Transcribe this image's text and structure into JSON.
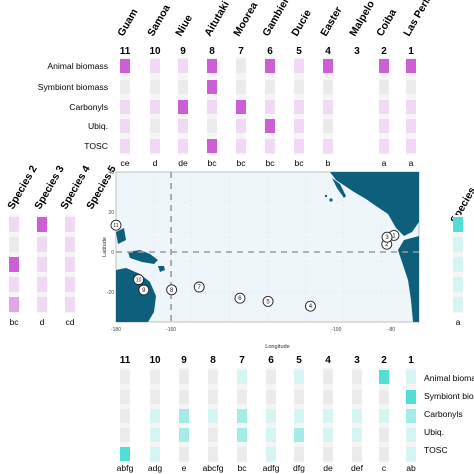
{
  "colors": {
    "magenta_strong": "#cc5fd6",
    "magenta_mid": "#e2a6e8",
    "magenta_light": "#f0d9f2",
    "cyan_strong": "#4fe0d3",
    "cyan_mid": "#a4ede7",
    "cyan_light": "#d6f5f2",
    "grey": "#ebebeb",
    "ocean": "#eef6fa",
    "land": "#0d5f7c"
  },
  "rows": [
    "Animal biomass",
    "Symbiont biomass",
    "Carbonyls",
    "Ubiq.",
    "TOSC"
  ],
  "rows_right_truncated": [
    "Animal biomass",
    "Symbiont bio",
    "Carbonyls",
    "Ubiq.",
    "TOSC"
  ],
  "chart_data": [
    {
      "type": "heatmap",
      "name_note": "top panel",
      "columns": [
        {
          "site": "Guam",
          "num": "11",
          "letters": "ce",
          "levels": [
            3,
            0,
            1,
            1,
            1
          ]
        },
        {
          "site": "Samoa",
          "num": "10",
          "letters": "d",
          "levels": [
            1,
            0,
            1,
            0,
            1
          ]
        },
        {
          "site": "Niue",
          "num": "9",
          "letters": "de",
          "levels": [
            1,
            0,
            3,
            1,
            1
          ]
        },
        {
          "site": "Aitutaki",
          "num": "8",
          "letters": "bc",
          "levels": [
            3,
            3,
            1,
            0,
            3
          ]
        },
        {
          "site": "Moorea",
          "num": "7",
          "letters": "bc",
          "levels": [
            0,
            0,
            3,
            1,
            1
          ]
        },
        {
          "site": "Gambier",
          "num": "6",
          "letters": "bc",
          "levels": [
            3,
            0,
            1,
            3,
            1
          ]
        },
        {
          "site": "Ducie",
          "num": "5",
          "letters": "bc",
          "levels": [
            1,
            0,
            1,
            1,
            1
          ]
        },
        {
          "site": "Easter",
          "num": "4",
          "letters": "b",
          "levels": [
            3,
            0,
            1,
            0,
            1
          ]
        },
        {
          "site": "Malpelo",
          "num": "3",
          "letters": "",
          "levels": []
        },
        {
          "site": "Coiba",
          "num": "2",
          "letters": "a",
          "levels": [
            3,
            0,
            1,
            1,
            1
          ]
        },
        {
          "site": "Las Perlas",
          "num": "1",
          "letters": "a",
          "levels": [
            3,
            0,
            1,
            1,
            1
          ]
        }
      ]
    },
    {
      "type": "heatmap",
      "name_note": "left panel",
      "columns": [
        {
          "species": "Species 2",
          "letters": "bc",
          "levels": [
            1,
            0,
            3,
            1,
            2
          ]
        },
        {
          "species": "Species 3",
          "letters": "",
          "levels": []
        },
        {
          "species": "Species 4",
          "letters": "d",
          "levels": [
            3,
            1,
            1,
            1,
            1
          ]
        },
        {
          "species": "Species 5",
          "letters": "cd",
          "levels": [
            1,
            1,
            1,
            1,
            1
          ]
        }
      ]
    },
    {
      "type": "heatmap",
      "name_note": "right panel",
      "columns": [
        {
          "species": "Species",
          "letters": "a",
          "levels": [
            3,
            1,
            1,
            1,
            1
          ]
        }
      ]
    },
    {
      "type": "heatmap",
      "name_note": "bottom panel",
      "columns": [
        {
          "num": "11",
          "letters": "abfg",
          "levels": [
            0,
            0,
            0,
            0,
            3
          ]
        },
        {
          "num": "10",
          "letters": "adg",
          "levels": [
            0,
            0,
            1,
            1,
            1
          ]
        },
        {
          "num": "9",
          "letters": "e",
          "levels": [
            0,
            0,
            2,
            2,
            0
          ]
        },
        {
          "num": "8",
          "letters": "abcfg",
          "levels": [
            0,
            0,
            1,
            0,
            0
          ]
        },
        {
          "num": "7",
          "letters": "bc",
          "levels": [
            1,
            0,
            2,
            2,
            0
          ]
        },
        {
          "num": "6",
          "letters": "adfg",
          "levels": [
            0,
            0,
            1,
            1,
            1
          ]
        },
        {
          "num": "5",
          "letters": "dfg",
          "levels": [
            1,
            0,
            1,
            2,
            0
          ]
        },
        {
          "num": "4",
          "letters": "de",
          "levels": [
            0,
            0,
            1,
            1,
            0
          ]
        },
        {
          "num": "3",
          "letters": "def",
          "levels": [
            0,
            0,
            1,
            1,
            0
          ]
        },
        {
          "num": "2",
          "letters": "c",
          "levels": [
            3,
            0,
            1,
            0,
            0
          ]
        },
        {
          "num": "1",
          "letters": "ab",
          "levels": [
            1,
            3,
            2,
            1,
            1
          ]
        }
      ]
    },
    {
      "type": "scatter",
      "name_note": "map",
      "xlabel": "Longitude",
      "ylabel": "Latitude",
      "xlim": [
        -180,
        -70
      ],
      "ylim": [
        -35,
        40
      ],
      "x_ticks": [
        "-180",
        "-160",
        "-100",
        "-80"
      ],
      "y_ticks": [
        "40",
        "20",
        "0",
        "-20"
      ],
      "points": [
        {
          "label": "1",
          "lon": -79.1,
          "lat": 8.3
        },
        {
          "label": "2",
          "lon": -81.7,
          "lat": 3.9
        },
        {
          "label": "3",
          "lon": -81.6,
          "lat": 7.4
        },
        {
          "label": "4",
          "lon": -109.4,
          "lat": -27.1
        },
        {
          "label": "5",
          "lon": -124.8,
          "lat": -24.7
        },
        {
          "label": "6",
          "lon": -135.0,
          "lat": -23.1
        },
        {
          "label": "7",
          "lon": -149.8,
          "lat": -17.5
        },
        {
          "label": "8",
          "lon": -159.8,
          "lat": -18.9
        },
        {
          "label": "9",
          "lon": -169.9,
          "lat": -19.0
        },
        {
          "label": "10",
          "lon": -171.8,
          "lat": -13.8
        },
        {
          "label": "11",
          "lon": -180.0,
          "lat": 13.4
        }
      ],
      "ref_lon": -160,
      "ref_lat": 0
    }
  ]
}
